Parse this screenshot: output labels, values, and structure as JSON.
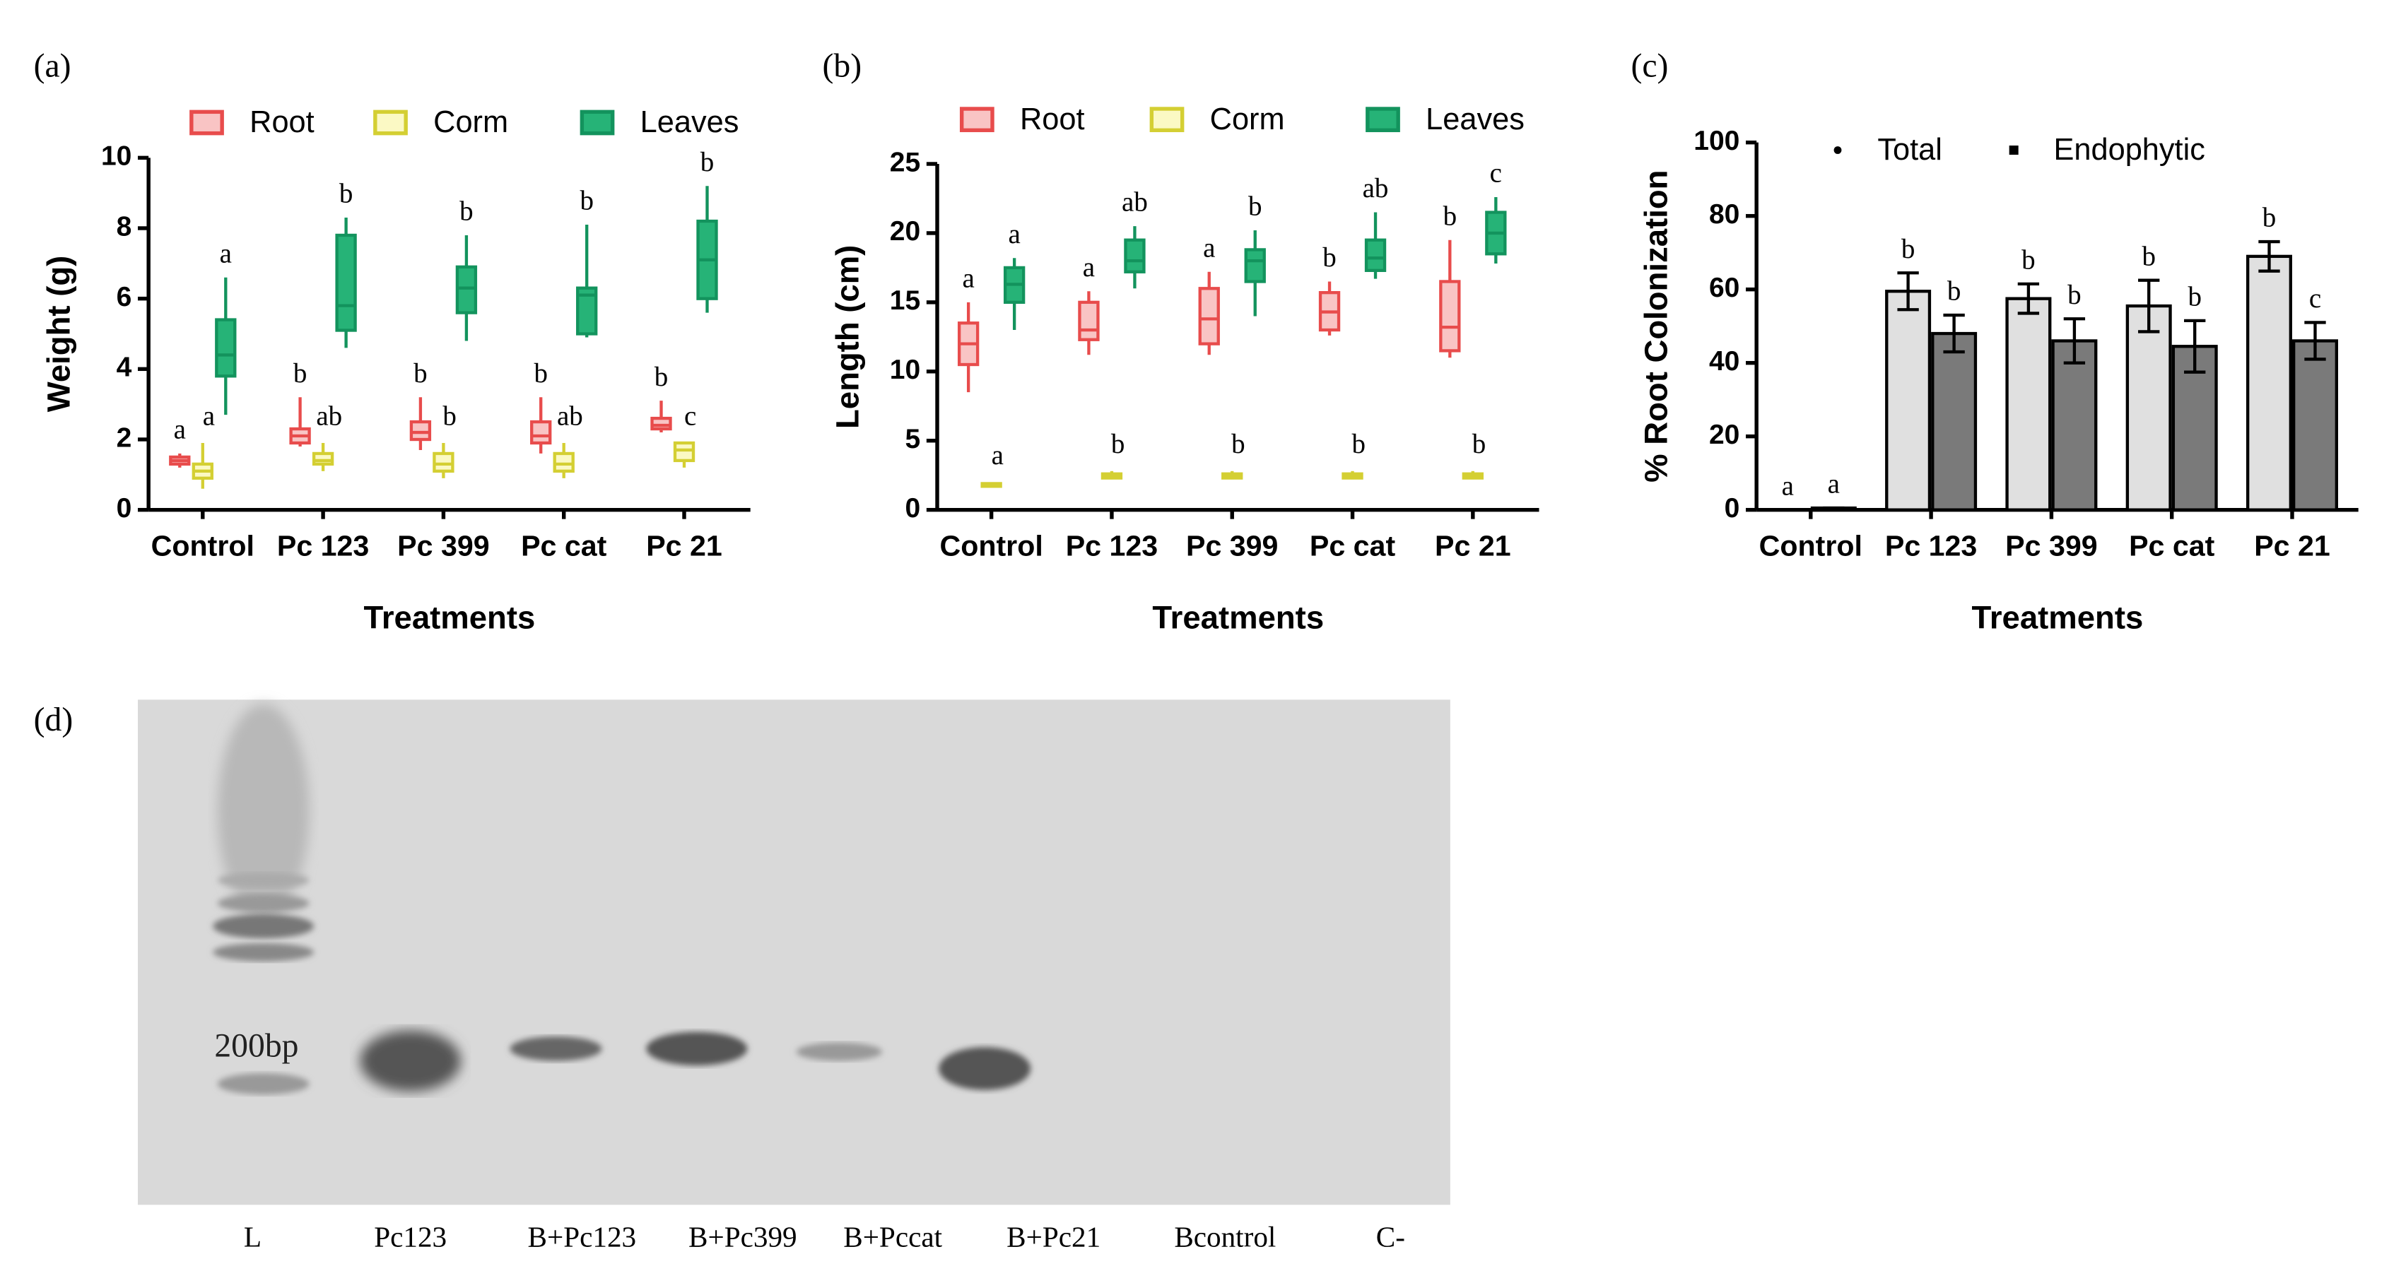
{
  "chart_data": [
    {
      "type": "box",
      "panel_label": "(a)",
      "x_label": "Treatments",
      "y_label": "Weight (g)",
      "categories": [
        "Control",
        "Pc 123",
        "Pc 399",
        "Pc cat",
        "Pc 21"
      ],
      "ylim": [
        0,
        10
      ],
      "yticks": [
        0,
        2,
        4,
        6,
        8,
        10
      ],
      "series": [
        {
          "name": "Root",
          "color": "#e84c4c",
          "fill": "#f9c4c4",
          "min": [
            1.2,
            1.8,
            1.7,
            1.6,
            2.2
          ],
          "q1": [
            1.3,
            1.9,
            2.0,
            1.9,
            2.3
          ],
          "median": [
            1.4,
            2.1,
            2.2,
            2.1,
            2.4
          ],
          "q3": [
            1.5,
            2.3,
            2.5,
            2.5,
            2.6
          ],
          "max": [
            1.6,
            3.2,
            3.2,
            3.2,
            3.1
          ],
          "labels": [
            "a",
            "b",
            "b",
            "b",
            "b"
          ]
        },
        {
          "name": "Corm",
          "color": "#d4cf33",
          "fill": "#fbf9c4",
          "min": [
            0.6,
            1.1,
            0.9,
            0.9,
            1.2
          ],
          "q1": [
            0.9,
            1.3,
            1.1,
            1.1,
            1.4
          ],
          "median": [
            1.1,
            1.4,
            1.3,
            1.3,
            1.7
          ],
          "q3": [
            1.3,
            1.6,
            1.6,
            1.6,
            1.9
          ],
          "max": [
            1.9,
            1.9,
            1.9,
            1.9,
            1.9
          ],
          "labels": [
            "a",
            "ab",
            "b",
            "ab",
            "c"
          ]
        },
        {
          "name": "Leaves",
          "color": "#13935d",
          "fill": "#26b377",
          "min": [
            2.7,
            4.6,
            4.8,
            4.9,
            5.6
          ],
          "q1": [
            3.8,
            5.1,
            5.6,
            5.0,
            6.0
          ],
          "median": [
            4.4,
            5.8,
            6.3,
            6.1,
            7.1
          ],
          "q3": [
            5.4,
            7.8,
            6.9,
            6.3,
            8.2
          ],
          "max": [
            6.6,
            8.3,
            7.8,
            8.1,
            9.2
          ],
          "labels": [
            "a",
            "b",
            "b",
            "b",
            "b"
          ]
        }
      ]
    },
    {
      "type": "box",
      "panel_label": "(b)",
      "x_label": "Treatments",
      "y_label": "Length (cm)",
      "categories": [
        "Control",
        "Pc 123",
        "Pc 399",
        "Pc cat",
        "Pc 21"
      ],
      "ylim": [
        0,
        25
      ],
      "yticks": [
        0,
        5,
        10,
        15,
        20,
        25
      ],
      "series": [
        {
          "name": "Root",
          "color": "#e84c4c",
          "fill": "#f9c4c4",
          "min": [
            8.5,
            11.2,
            11.2,
            12.6,
            11
          ],
          "q1": [
            10.5,
            12.3,
            12,
            13,
            11.5
          ],
          "median": [
            12,
            13,
            13.8,
            14.3,
            13.2
          ],
          "q3": [
            13.5,
            15,
            16,
            15.7,
            16.5
          ],
          "max": [
            15,
            15.8,
            17.2,
            16.5,
            19.5
          ],
          "labels": [
            "a",
            "a",
            "a",
            "b",
            "b"
          ]
        },
        {
          "name": "Corm",
          "color": "#d4cf33",
          "fill": "#fbf9c4",
          "min": [
            1.6,
            2.2,
            2.2,
            2.2,
            2.2
          ],
          "q1": [
            1.7,
            2.3,
            2.3,
            2.3,
            2.3
          ],
          "median": [
            1.8,
            2.5,
            2.5,
            2.5,
            2.5
          ],
          "q3": [
            1.9,
            2.6,
            2.6,
            2.6,
            2.6
          ],
          "max": [
            2,
            2.8,
            2.8,
            2.8,
            2.8
          ],
          "labels": [
            "a",
            "b",
            "b",
            "b",
            "b"
          ]
        },
        {
          "name": "Leaves",
          "color": "#13935d",
          "fill": "#26b377",
          "min": [
            13,
            16,
            14,
            16.7,
            17.8
          ],
          "q1": [
            15,
            17.2,
            16.5,
            17.3,
            18.5
          ],
          "median": [
            16.3,
            18,
            18,
            18.2,
            20
          ],
          "q3": [
            17.5,
            19.5,
            18.8,
            19.5,
            21.5
          ],
          "max": [
            18.2,
            20.5,
            20.2,
            21.5,
            22.6
          ],
          "labels": [
            "a",
            "ab",
            "b",
            "ab",
            "c"
          ]
        }
      ]
    },
    {
      "type": "bar",
      "panel_label": "(c)",
      "x_label": "Treatments",
      "y_label": "% Root Colonization",
      "categories": [
        "Control",
        "Pc 123",
        "Pc 399",
        "Pc cat",
        "Pc 21"
      ],
      "ylim": [
        0,
        100
      ],
      "yticks": [
        0,
        20,
        40,
        60,
        80,
        100
      ],
      "series": [
        {
          "name": "Total",
          "color": "#e0e0e0",
          "marker": "circle",
          "values": [
            0,
            59.5,
            57.5,
            55.5,
            69
          ],
          "errors": [
            0,
            5,
            4,
            7,
            4
          ],
          "labels": [
            "a",
            "b",
            "b",
            "b",
            "b"
          ]
        },
        {
          "name": "Endophytic",
          "color": "#7a7a7a",
          "marker": "square",
          "values": [
            0.5,
            48,
            46,
            44.5,
            46
          ],
          "errors": [
            0,
            5,
            6,
            7,
            5
          ],
          "labels": [
            "a",
            "b",
            "b",
            "b",
            "c"
          ]
        }
      ]
    }
  ],
  "gel": {
    "panel_label": "(d)",
    "marker": "200bp",
    "lanes": [
      "L",
      "Pc123",
      "B+Pc123",
      "B+Pc399",
      "B+Pccat",
      "B+Pc21",
      "Bcontrol",
      "C-"
    ]
  }
}
